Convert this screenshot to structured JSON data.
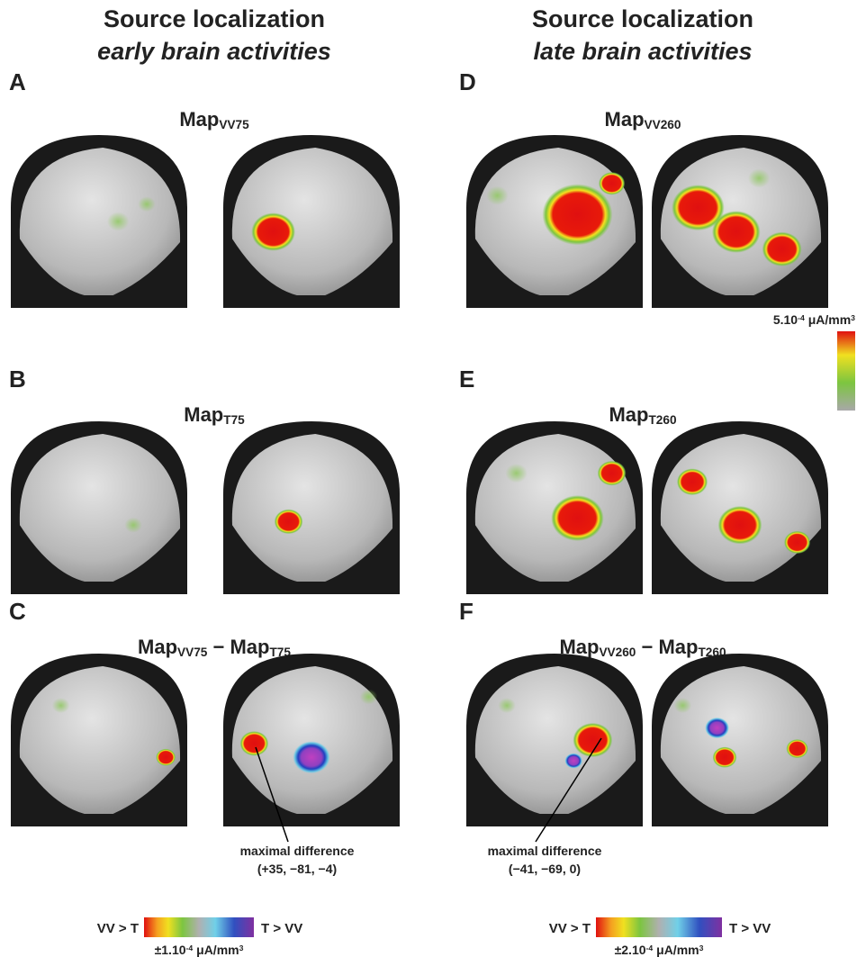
{
  "columns": [
    {
      "title": "Source localization",
      "subtitle": "early brain activities",
      "panels": [
        {
          "letter": "A",
          "title": [
            "Map",
            "VV75"
          ]
        },
        {
          "letter": "B",
          "title": [
            "Map",
            "T75"
          ]
        },
        {
          "letter": "C",
          "title": [
            "Map",
            "VV75",
            " − Map",
            "T75"
          ]
        }
      ],
      "annotation": {
        "label": "maximal difference",
        "coords": "(+35, −81, −4)"
      },
      "scale": {
        "left_label": "VV > T",
        "right_label": "T > VV",
        "value": "±1.10",
        "exp": "-4",
        "unit": " μA/mm",
        "unit_exp": "3"
      }
    },
    {
      "title": "Source localization",
      "subtitle": "late brain activities",
      "panels": [
        {
          "letter": "D",
          "title": [
            "Map",
            "VV260"
          ]
        },
        {
          "letter": "E",
          "title": [
            "Map",
            "T260"
          ]
        },
        {
          "letter": "F",
          "title": [
            "Map",
            "VV260",
            " − Map",
            "T260"
          ]
        }
      ],
      "annotation": {
        "label": "maximal difference",
        "coords": "(−41, −69, 0)"
      },
      "scale": {
        "left_label": "VV > T",
        "right_label": "T > VV",
        "value": "±2.10",
        "exp": "-4",
        "unit": " μA/mm",
        "unit_exp": "3"
      }
    }
  ],
  "colorbar": {
    "value": "5.10",
    "exp": "-4",
    "unit": " μA/mm",
    "unit_exp": "3"
  }
}
